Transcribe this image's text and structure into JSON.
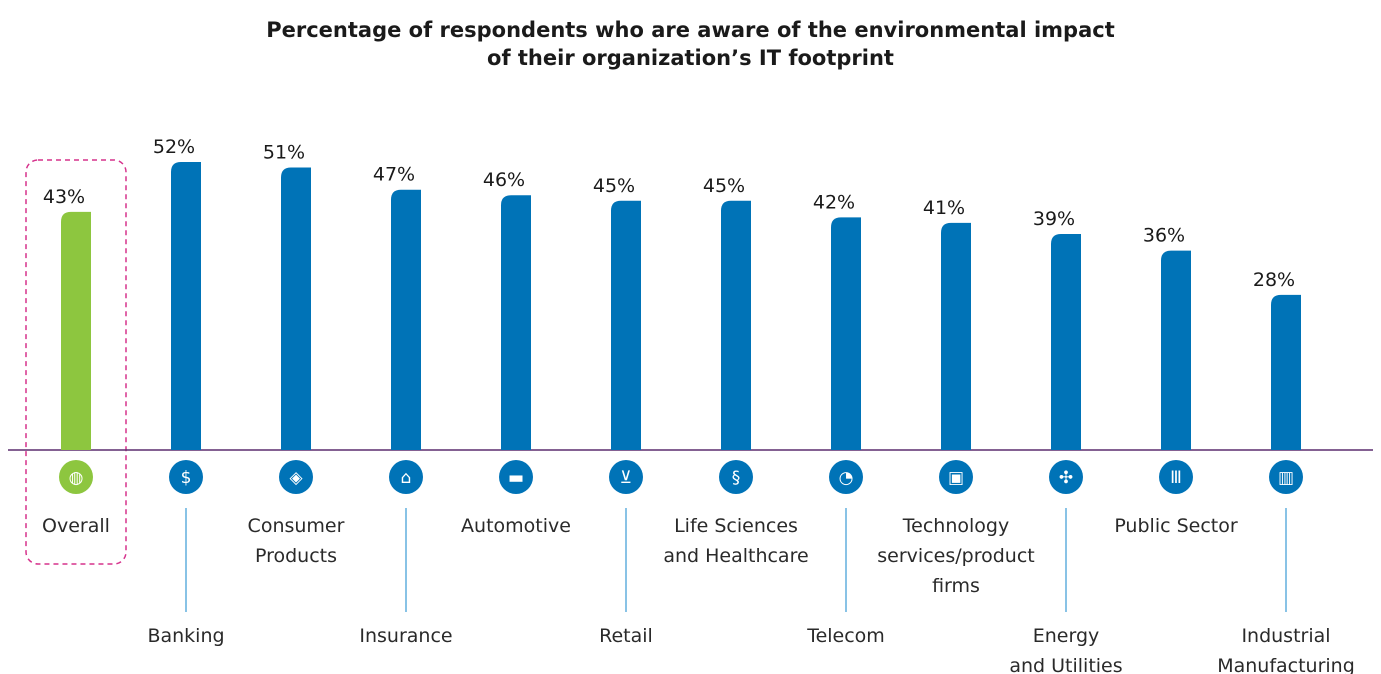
{
  "chart_data": {
    "type": "bar",
    "title": [
      "Percentage of respondents who are aware of the environmental impact",
      "of their organization’s IT footprint"
    ],
    "xlabel": "",
    "ylabel": "",
    "ylim": [
      0,
      55
    ],
    "unit": "%",
    "categories": [
      [
        "Overall"
      ],
      [
        "Banking"
      ],
      [
        "Consumer",
        "Products"
      ],
      [
        "Insurance"
      ],
      [
        "Automotive"
      ],
      [
        "Retail"
      ],
      [
        "Life Sciences",
        "and Healthcare"
      ],
      [
        "Telecom"
      ],
      [
        "Technology",
        "services/product",
        "firms"
      ],
      [
        "Energy",
        "and Utilities"
      ],
      [
        "Public Sector"
      ],
      [
        "Industrial",
        "Manufacturing"
      ]
    ],
    "values": [
      43,
      52,
      51,
      47,
      46,
      45,
      45,
      42,
      41,
      39,
      36,
      28
    ],
    "value_labels": [
      "43%",
      "52%",
      "51%",
      "47%",
      "46%",
      "45%",
      "45%",
      "42%",
      "41%",
      "39%",
      "36%",
      "28%"
    ],
    "icons": [
      "globe-icon",
      "bank-icon",
      "tag-icon",
      "house-hands-icon",
      "car-icon",
      "cart-icon",
      "dna-icon",
      "satellite-dish-icon",
      "chip-icon",
      "wind-turbine-icon",
      "government-building-icon",
      "factory-icon"
    ],
    "label_positions": [
      "upper",
      "lower",
      "upper",
      "lower",
      "upper",
      "lower",
      "upper",
      "lower",
      "upper",
      "lower",
      "upper",
      "lower"
    ],
    "highlight_index": 0,
    "colors": {
      "highlight_bar": "#8dc63f",
      "bar": "#0073b7",
      "axis": "#5c2d6e",
      "connector": "#3a9bd5",
      "highlight_box": "#d6328c"
    },
    "grid": false,
    "legend": "none"
  }
}
